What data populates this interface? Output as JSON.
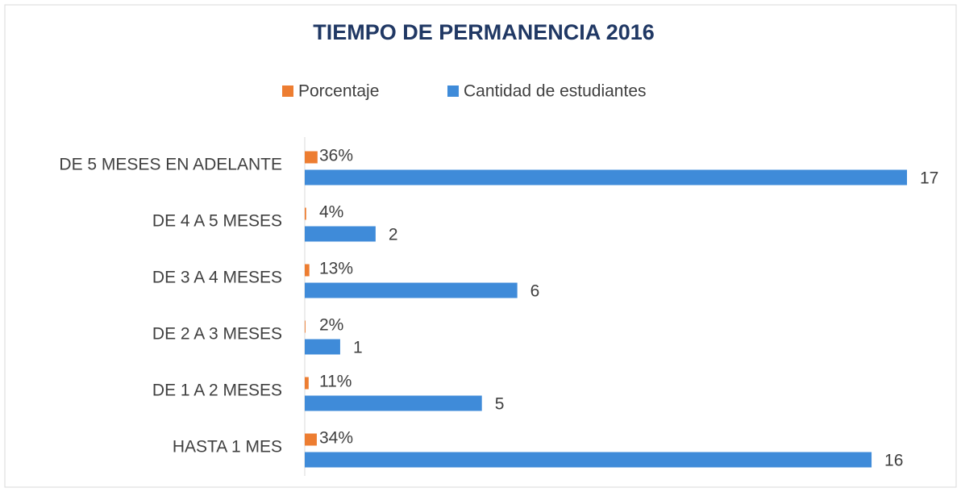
{
  "chart_data": {
    "type": "bar",
    "orientation": "horizontal",
    "title": "TIEMPO DE PERMANENCIA 2016",
    "categories": [
      "DE 5 MESES EN ADELANTE",
      "DE 4 A 5 MESES",
      "DE 3 A 4 MESES",
      "DE 2 A 3 MESES",
      "DE 1 A 2 MESES",
      "HASTA 1 MES"
    ],
    "series": [
      {
        "name": "Porcentaje",
        "color": "#ed7d31",
        "values": [
          0.36,
          0.04,
          0.13,
          0.02,
          0.11,
          0.34
        ],
        "value_labels": [
          "36%",
          "4%",
          "13%",
          "2%",
          "11%",
          "34%"
        ]
      },
      {
        "name": "Cantidad de estudiantes",
        "color": "#3f8bd9",
        "values": [
          17,
          2,
          6,
          1,
          5,
          16
        ]
      }
    ],
    "xlim": [
      0,
      17
    ],
    "legend": "top"
  }
}
